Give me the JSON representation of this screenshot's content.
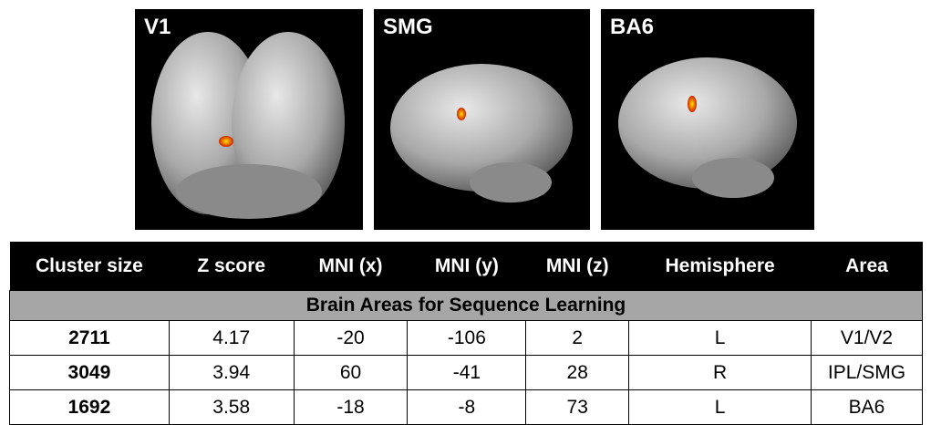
{
  "figure": {
    "panels": [
      "V1",
      "SMG",
      "BA6"
    ]
  },
  "table": {
    "headers": [
      "Cluster size",
      "Z score",
      "MNI (x)",
      "MNI (y)",
      "MNI (z)",
      "Hemisphere",
      "Area"
    ],
    "section": "Brain Areas for Sequence Learning",
    "rows": [
      [
        "2711",
        "4.17",
        "-20",
        "-106",
        "2",
        "L",
        "V1/V2"
      ],
      [
        "3049",
        "3.94",
        "60",
        "-41",
        "28",
        "R",
        "IPL/SMG"
      ],
      [
        "1692",
        "3.58",
        "-18",
        "-8",
        "73",
        "L",
        "BA6"
      ]
    ]
  }
}
